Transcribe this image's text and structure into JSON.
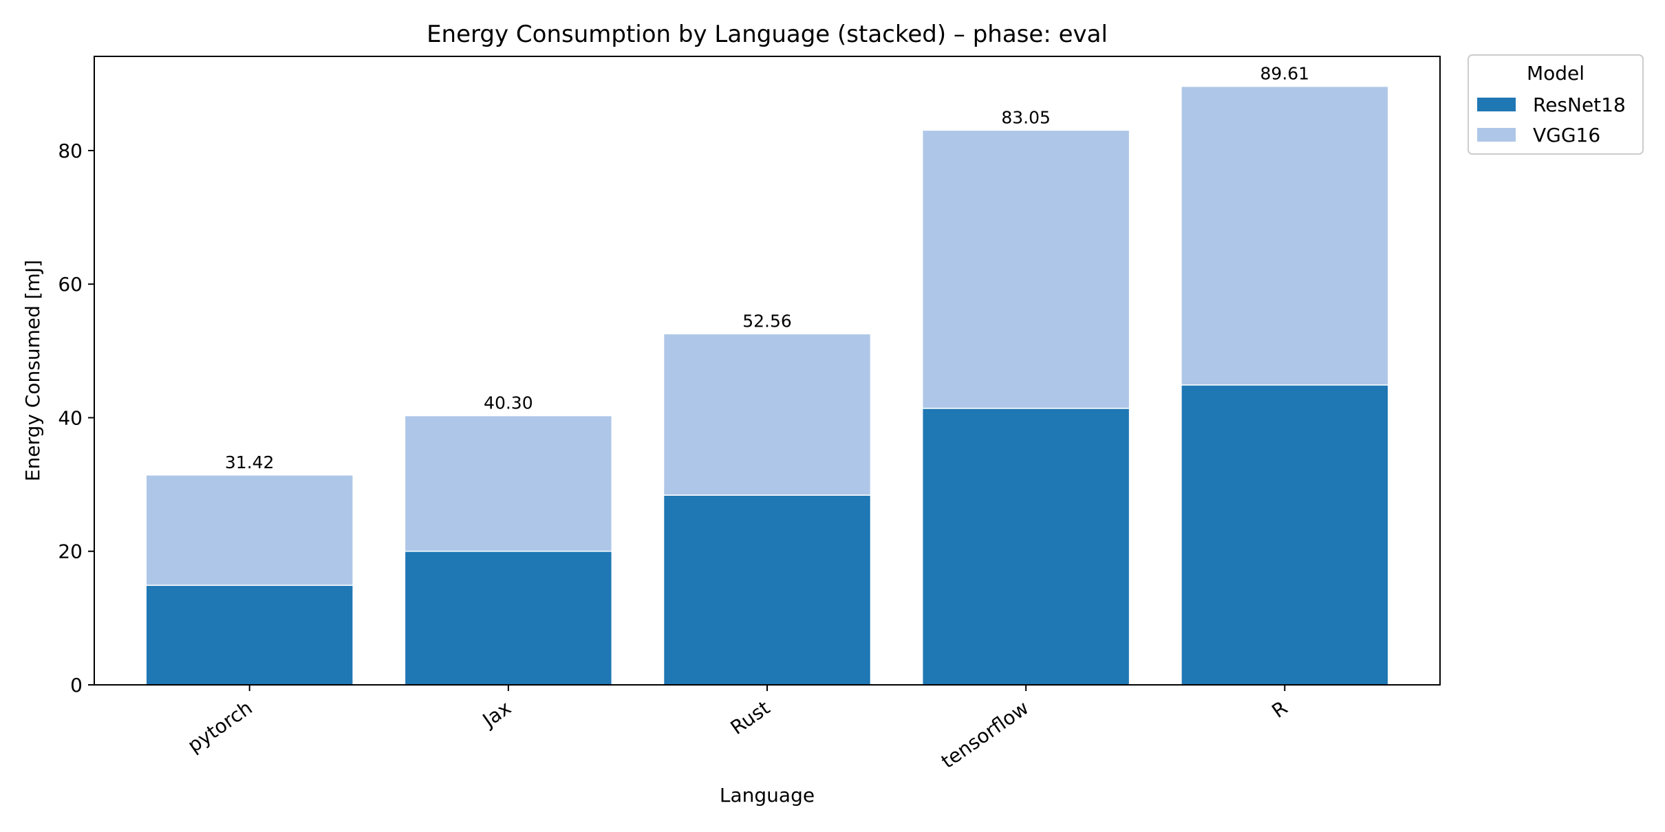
{
  "chart_data": {
    "type": "bar",
    "stacked": true,
    "title": "Energy Consumption by Language (stacked) – phase: eval",
    "xlabel": "Language",
    "ylabel": "Energy Consumed [mJ]",
    "categories": [
      "pytorch",
      "Jax",
      "Rust",
      "tensorflow",
      "R"
    ],
    "series": [
      {
        "name": "ResNet18",
        "color": "#1f77b4",
        "values": [
          14.9,
          20.0,
          28.4,
          41.4,
          44.9
        ]
      },
      {
        "name": "VGG16",
        "color": "#aec7e8",
        "values": [
          16.52,
          20.3,
          24.16,
          41.65,
          44.71
        ]
      }
    ],
    "totals": [
      "31.42",
      "40.30",
      "52.56",
      "83.05",
      "89.61"
    ],
    "ylim": [
      0,
      94.1
    ],
    "yticks": [
      0,
      20,
      40,
      60,
      80
    ],
    "legend": {
      "title": "Model",
      "position": "outside-top-right"
    },
    "grid": false
  }
}
